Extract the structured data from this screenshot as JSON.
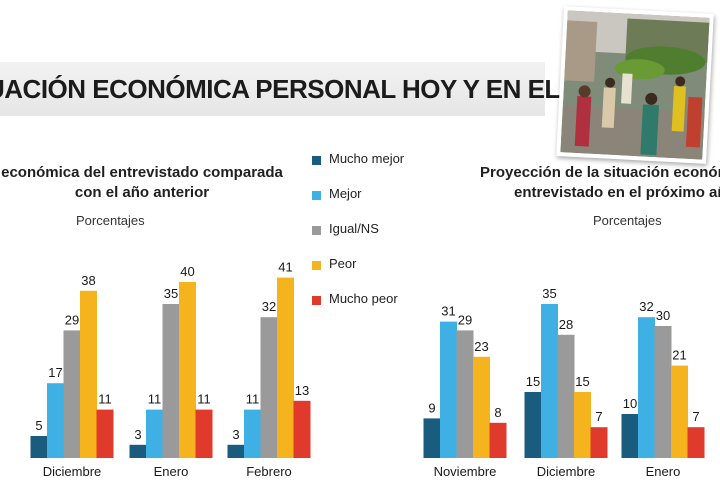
{
  "banner": {
    "title": "UACIÓN ECONÓMICA PERSONAL HOY Y EN EL FUTURO"
  },
  "legend": [
    {
      "label": "Mucho mejor",
      "color": "#1a5c7e"
    },
    {
      "label": "Mejor",
      "color": "#3fb0e4"
    },
    {
      "label": "Igual/NS",
      "color": "#9a9a9a"
    },
    {
      "label": "Peor",
      "color": "#f5b41e"
    },
    {
      "label": "Mucho peor",
      "color": "#e03a2d"
    }
  ],
  "photo": {
    "icon": "street-market-photo"
  },
  "chart_data": [
    {
      "type": "bar",
      "title_line1": " económica del entrevistado comparada",
      "title_line2": "con el año anterior",
      "subtitle": "Porcentajes",
      "categories": [
        "Diciembre",
        "Enero",
        "Febrero"
      ],
      "series": [
        {
          "name": "Mucho mejor",
          "values": [
            5,
            3,
            3
          ]
        },
        {
          "name": "Mejor",
          "values": [
            17,
            11,
            11
          ]
        },
        {
          "name": "Igual/NS",
          "values": [
            29,
            35,
            32
          ]
        },
        {
          "name": "Peor",
          "values": [
            38,
            40,
            41
          ]
        },
        {
          "name": "Mucho peor",
          "values": [
            11,
            11,
            13
          ]
        }
      ],
      "ylim": [
        0,
        45
      ]
    },
    {
      "type": "bar",
      "title_line1": "Proyección de la situación económ",
      "title_line2": "entrevistado en el próximo añ",
      "subtitle": "Porcentajes",
      "categories": [
        "Noviembre",
        "Diciembre",
        "Enero"
      ],
      "series": [
        {
          "name": "Mucho mejor",
          "values": [
            9,
            15,
            10
          ]
        },
        {
          "name": "Mejor",
          "values": [
            31,
            35,
            32
          ]
        },
        {
          "name": "Igual/NS",
          "values": [
            29,
            28,
            30
          ]
        },
        {
          "name": "Peor",
          "values": [
            23,
            15,
            21
          ]
        },
        {
          "name": "Mucho peor",
          "values": [
            8,
            7,
            7
          ]
        }
      ],
      "ylim": [
        0,
        45
      ]
    }
  ]
}
